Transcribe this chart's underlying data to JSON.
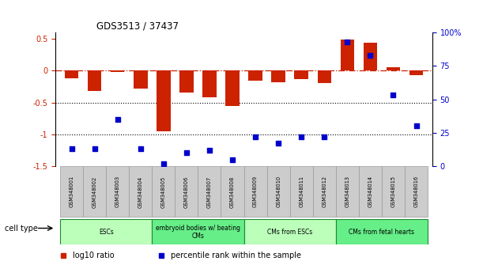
{
  "title": "GDS3513 / 37437",
  "samples": [
    "GSM348001",
    "GSM348002",
    "GSM348003",
    "GSM348004",
    "GSM348005",
    "GSM348006",
    "GSM348007",
    "GSM348008",
    "GSM348009",
    "GSM348010",
    "GSM348011",
    "GSM348012",
    "GSM348013",
    "GSM348014",
    "GSM348015",
    "GSM348016"
  ],
  "log10_ratio": [
    -0.12,
    -0.32,
    -0.02,
    -0.28,
    -0.95,
    -0.35,
    -0.42,
    -0.55,
    -0.16,
    -0.18,
    -0.14,
    -0.19,
    0.48,
    0.43,
    0.05,
    -0.07
  ],
  "percentile_rank": [
    13,
    13,
    35,
    13,
    2,
    10,
    12,
    5,
    22,
    17,
    22,
    22,
    93,
    83,
    53,
    30
  ],
  "ylim_left": [
    -1.5,
    0.6
  ],
  "ylim_right": [
    0,
    100
  ],
  "cell_type_groups": [
    {
      "label": "ESCs",
      "start": 0,
      "end": 3,
      "color": "#bbffbb"
    },
    {
      "label": "embryoid bodies w/ beating\nCMs",
      "start": 4,
      "end": 7,
      "color": "#66ee88"
    },
    {
      "label": "CMs from ESCs",
      "start": 8,
      "end": 11,
      "color": "#bbffbb"
    },
    {
      "label": "CMs from fetal hearts",
      "start": 12,
      "end": 15,
      "color": "#66ee88"
    }
  ],
  "bar_color": "#cc2200",
  "scatter_color": "#0000cc",
  "dotted_lines": [
    -0.5,
    -1.0
  ],
  "right_axis_ticks": [
    0,
    25,
    50,
    75,
    100
  ],
  "right_axis_tick_labels": [
    "0",
    "25",
    "50",
    "75",
    "100%"
  ],
  "left_axis_ticks": [
    -1.5,
    -1.0,
    -0.5,
    0.0,
    0.5
  ],
  "left_axis_tick_labels": [
    "-1.5",
    "-1",
    "-0.5",
    "0",
    "0.5"
  ],
  "legend_items": [
    {
      "label": "log10 ratio",
      "color": "#cc2200"
    },
    {
      "label": "percentile rank within the sample",
      "color": "#0000cc"
    }
  ],
  "cell_type_label": "cell type",
  "sample_box_color": "#cccccc",
  "sample_box_edge": "#999999"
}
